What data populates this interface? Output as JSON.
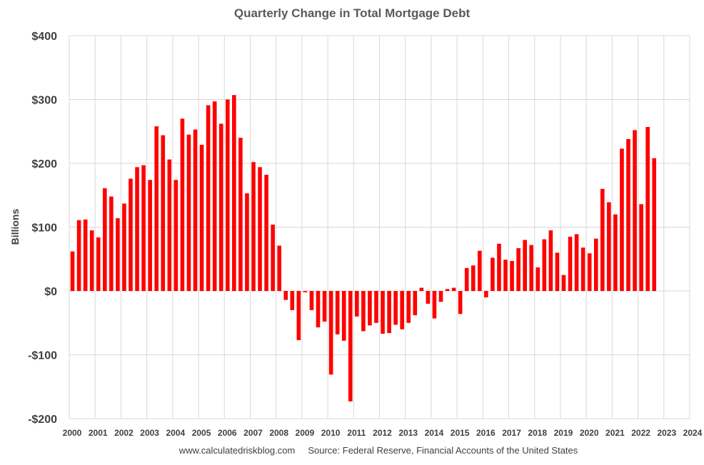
{
  "chart_data": {
    "type": "bar",
    "title": "Quarterly Change in Total Mortgage Debt",
    "ylabel": "Billions",
    "xlabel": "",
    "ylim": [
      -200,
      400
    ],
    "xlim": [
      2000,
      2024
    ],
    "yticks": [
      400,
      300,
      200,
      100,
      0,
      -100,
      -200
    ],
    "ytick_labels": [
      "$400",
      "$300",
      "$200",
      "$100",
      "$0",
      "-$100",
      "-$200"
    ],
    "xticks": [
      "2000",
      "2001",
      "2002",
      "2003",
      "2004",
      "2005",
      "2006",
      "2007",
      "2008",
      "2009",
      "2010",
      "2011",
      "2012",
      "2013",
      "2014",
      "2015",
      "2016",
      "2017",
      "2018",
      "2019",
      "2020",
      "2021",
      "2022",
      "2023",
      "2024"
    ],
    "grid": true,
    "bar_color": "#ff0000",
    "start_quarter": "2000 Q1",
    "series": [
      {
        "values": [
          62,
          111,
          112,
          95,
          84,
          161,
          148,
          114,
          137,
          176,
          194,
          197,
          174,
          258,
          244,
          206,
          174,
          270,
          245,
          253,
          229,
          291,
          297,
          262,
          300,
          307,
          240,
          153,
          202,
          194,
          182,
          104,
          71,
          -14,
          -30,
          -77,
          -2,
          -30,
          -57,
          -48,
          -131,
          -68,
          -78,
          -173,
          -40,
          -63,
          -54,
          -50,
          -67,
          -66,
          -53,
          -60,
          -50,
          -38,
          5,
          -20,
          -43,
          -17,
          3,
          5,
          -36,
          36,
          40,
          63,
          -10,
          52,
          74,
          49,
          47,
          67,
          80,
          72,
          37,
          81,
          95,
          60,
          25,
          85,
          89,
          68,
          59,
          82,
          160,
          139,
          120,
          223,
          238,
          252,
          136,
          257,
          208
        ]
      }
    ]
  },
  "footer": {
    "text": "www.calculatedriskblog.com     Source: Federal Reserve, Financial Accounts of the United States"
  }
}
